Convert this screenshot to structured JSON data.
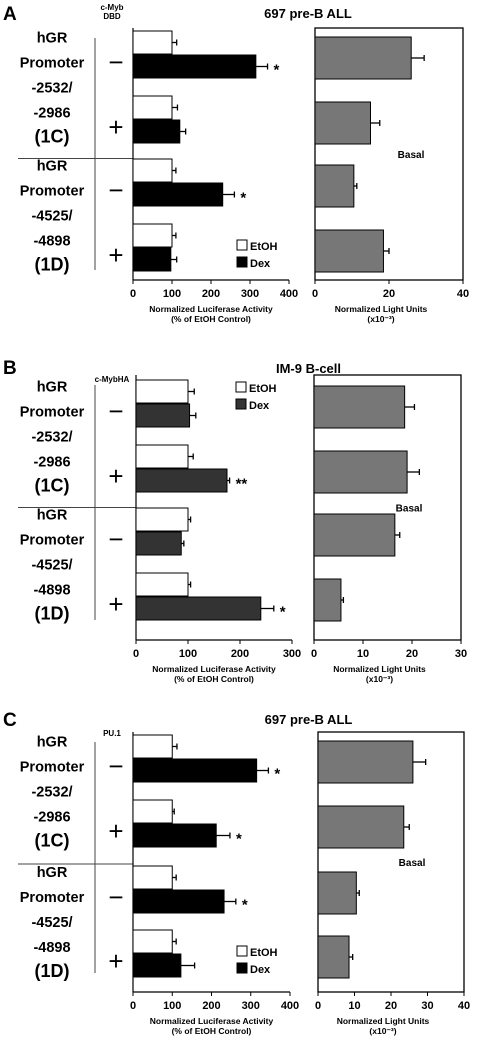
{
  "chart_data": [
    {
      "panel": "A",
      "title": "697 pre-B ALL",
      "condition_header": "c-Myb DBD",
      "type": "bar",
      "orientation": "horizontal",
      "promoters": [
        {
          "lines": [
            "hGR",
            "Promoter",
            "-2532/",
            "-2986"
          ],
          "id": "(1C)"
        },
        {
          "lines": [
            "hGR",
            "Promoter",
            "-4525/",
            "-4898"
          ],
          "id": "(1D)"
        }
      ],
      "conditions": [
        "−",
        "+",
        "−",
        "+"
      ],
      "left": {
        "xlabel": [
          "Normalized Luciferase Activity",
          "(% of EtOH Control)"
        ],
        "xlim": [
          0,
          400
        ],
        "ticks": [
          0,
          100,
          200,
          300,
          400
        ],
        "series": [
          {
            "name": "EtOH",
            "color": "#ffffff",
            "values": [
              100,
              100,
              100,
              100
            ],
            "errors": [
              12,
              14,
              10,
              10
            ]
          },
          {
            "name": "Dex",
            "color": "#000000",
            "values": [
              315,
              120,
              230,
              97
            ],
            "errors": [
              30,
              15,
              30,
              15
            ]
          }
        ],
        "significance": [
          "*",
          "",
          "*",
          ""
        ],
        "legend_position": "bottom-right"
      },
      "right": {
        "xlabel": [
          "Normalized Light Units",
          "(x10⁻³)"
        ],
        "xlim": [
          0,
          40
        ],
        "ticks": [
          0,
          20,
          40
        ],
        "series": [
          {
            "name": "",
            "color": "#777777",
            "values": [
              26,
              15,
              10.5,
              18.5
            ],
            "errors": [
              3.5,
              2.5,
              0.8,
              1.5
            ]
          }
        ],
        "annotation": "Basal"
      }
    },
    {
      "panel": "B",
      "title": "IM-9 B-cell",
      "condition_header": "c-MybHA",
      "type": "bar",
      "orientation": "horizontal",
      "promoters": [
        {
          "lines": [
            "hGR",
            "Promoter",
            "-2532/",
            "-2986"
          ],
          "id": "(1C)"
        },
        {
          "lines": [
            "hGR",
            "Promoter",
            "-4525/",
            "-4898"
          ],
          "id": "(1D)"
        }
      ],
      "conditions": [
        "−",
        "+",
        "−",
        "+"
      ],
      "left": {
        "xlabel": [
          "Normalized Luciferase Activity",
          "(% of EtOH Control)"
        ],
        "xlim": [
          0,
          300
        ],
        "ticks": [
          0,
          100,
          200,
          300
        ],
        "series": [
          {
            "name": "EtOH",
            "color": "#ffffff",
            "values": [
              100,
              100,
              100,
              100
            ],
            "errors": [
              12,
              10,
              5,
              5
            ]
          },
          {
            "name": "Dex",
            "color": "#333333",
            "values": [
              103,
              175,
              87,
              240
            ],
            "errors": [
              12,
              5,
              5,
              25
            ]
          }
        ],
        "significance": [
          "",
          "**",
          "",
          "*"
        ],
        "legend_position": "top-right"
      },
      "right": {
        "xlabel": [
          "Normalized Light Units",
          "(x10⁻³)"
        ],
        "xlim": [
          0,
          30
        ],
        "ticks": [
          0,
          10,
          20,
          30
        ],
        "series": [
          {
            "name": "",
            "color": "#777777",
            "values": [
              18.5,
              19,
              16.5,
              5.5
            ],
            "errors": [
              2,
              2.5,
              1,
              0.5
            ]
          }
        ],
        "annotation": "Basal"
      }
    },
    {
      "panel": "C",
      "title": "697 pre-B ALL",
      "condition_header": "PU.1",
      "type": "bar",
      "orientation": "horizontal",
      "promoters": [
        {
          "lines": [
            "hGR",
            "Promoter",
            "-2532/",
            "-2986"
          ],
          "id": "(1C)"
        },
        {
          "lines": [
            "hGR",
            "Promoter",
            "-4525/",
            "-4898"
          ],
          "id": "(1D)"
        }
      ],
      "conditions": [
        "−",
        "+",
        "−",
        "+"
      ],
      "left": {
        "xlabel": [
          "Normalized Luciferase Activity",
          "(% of EtOH Control)"
        ],
        "xlim": [
          0,
          400
        ],
        "ticks": [
          0,
          100,
          200,
          300,
          400
        ],
        "series": [
          {
            "name": "EtOH",
            "color": "#ffffff",
            "values": [
              100,
              100,
              100,
              100
            ],
            "errors": [
              12,
              5,
              10,
              10
            ]
          },
          {
            "name": "Dex",
            "color": "#000000",
            "values": [
              315,
              212,
              232,
              122
            ],
            "errors": [
              30,
              35,
              30,
              35
            ]
          }
        ],
        "significance": [
          "*",
          "*",
          "*",
          ""
        ],
        "legend_position": "bottom-right"
      },
      "right": {
        "xlabel": [
          "Normalized Light Units",
          "(x10⁻³)"
        ],
        "xlim": [
          0,
          40
        ],
        "ticks": [
          0,
          10,
          20,
          30,
          40
        ],
        "series": [
          {
            "name": "",
            "color": "#777777",
            "values": [
              26,
              23.5,
              10.5,
              8.5
            ],
            "errors": [
              3.5,
              1.5,
              0.8,
              1
            ]
          }
        ],
        "annotation": "Basal"
      }
    }
  ]
}
